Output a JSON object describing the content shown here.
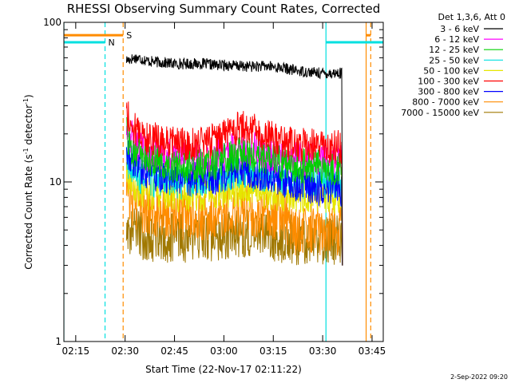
{
  "chart_data": {
    "type": "line",
    "title": "RHESSI Observing Summary Count Rates, Corrected",
    "xlabel": "Start Time (22-Nov-17 02:11:22)",
    "ylabel": "Corrected Count Rate (s",
    "ylabel_sup1": "-1",
    "ylabel_mid": " detector",
    "ylabel_sup2": "-1",
    "ylabel_end": ")",
    "x_unit": "minutes after 02:11:22",
    "xlim": [
      0,
      97
    ],
    "ylim": [
      1,
      100
    ],
    "y_scale": "log",
    "grid": false,
    "x_ticks": [
      {
        "label": "02:15",
        "value": 3.6
      },
      {
        "label": "02:30",
        "value": 18.6
      },
      {
        "label": "02:45",
        "value": 33.6
      },
      {
        "label": "03:00",
        "value": 48.6
      },
      {
        "label": "03:15",
        "value": 63.6
      },
      {
        "label": "03:30",
        "value": 78.6
      },
      {
        "label": "03:45",
        "value": 93.6
      }
    ],
    "y_ticks": [
      {
        "label": "1",
        "value": 1
      },
      {
        "label": "10",
        "value": 10
      },
      {
        "label": "100",
        "value": 100
      }
    ],
    "legend_title": "Det 1,3,6, Att 0",
    "legend_position": "outside-right",
    "series": [
      {
        "name": "3 - 6 keV",
        "color": "#000000",
        "x": [
          19,
          22,
          26,
          30,
          34,
          38,
          42,
          46,
          50,
          54,
          58,
          62,
          66,
          70,
          74,
          78,
          82,
          84.5,
          84.6
        ],
        "y": [
          58,
          60,
          57,
          56,
          55,
          55,
          55,
          54,
          54,
          53,
          53,
          53,
          52,
          50,
          49,
          48,
          48,
          48,
          3
        ]
      },
      {
        "name": "6 - 12 keV",
        "color": "#ff00ff",
        "x": [
          19,
          20,
          22,
          25,
          30,
          35,
          40,
          45,
          50,
          54,
          58,
          62,
          66,
          70,
          74,
          78,
          82,
          84.5,
          84.6
        ],
        "y": [
          24,
          20,
          17,
          15,
          15,
          14,
          14,
          14,
          15.5,
          16.5,
          16,
          15,
          14,
          14,
          14,
          14,
          14,
          14,
          3
        ]
      },
      {
        "name": "12 - 25 keV",
        "color": "#00d000",
        "x": [
          19,
          20,
          22,
          25,
          30,
          35,
          40,
          45,
          50,
          54,
          58,
          62,
          66,
          70,
          74,
          78,
          82,
          84.5,
          84.6
        ],
        "y": [
          20,
          17,
          15,
          14,
          13,
          12.5,
          12.5,
          13,
          14,
          15,
          14.5,
          14,
          13,
          12.5,
          12.5,
          12.5,
          12,
          12,
          3
        ]
      },
      {
        "name": "25 - 50 keV",
        "color": "#00e0e0",
        "x": [
          19,
          20,
          22,
          25,
          30,
          35,
          40,
          45,
          50,
          54,
          58,
          62,
          66,
          70,
          74,
          78,
          82,
          84.5,
          84.6
        ],
        "y": [
          14,
          12,
          11,
          10.5,
          10,
          10,
          10,
          10,
          11,
          11.5,
          11,
          11,
          10.5,
          10,
          10,
          10,
          10,
          10,
          3
        ]
      },
      {
        "name": "50 - 100 keV",
        "color": "#e6e600",
        "x": [
          19,
          20,
          22,
          25,
          30,
          35,
          40,
          45,
          50,
          54,
          58,
          62,
          66,
          70,
          74,
          78,
          82,
          84.5,
          84.6
        ],
        "y": [
          12,
          10,
          9,
          8.5,
          8.5,
          8.3,
          8.3,
          8.4,
          8.8,
          9,
          8.8,
          8.6,
          8.4,
          8.2,
          8.2,
          8.2,
          8.1,
          8.1,
          3
        ]
      },
      {
        "name": "100 - 300 keV",
        "color": "#ff0000",
        "x": [
          19,
          20,
          22,
          25,
          30,
          35,
          40,
          45,
          50,
          54,
          58,
          62,
          66,
          70,
          74,
          78,
          82,
          84.5,
          84.6
        ],
        "y": [
          28,
          24,
          21,
          19,
          18,
          17.5,
          17.5,
          18,
          20,
          22,
          21,
          19,
          18,
          17,
          17,
          17,
          16.5,
          16.5,
          3
        ]
      },
      {
        "name": "300 - 800 keV",
        "color": "#0000ff",
        "x": [
          19,
          20,
          22,
          25,
          30,
          35,
          40,
          45,
          50,
          54,
          58,
          62,
          66,
          70,
          74,
          78,
          82,
          84.5,
          84.6
        ],
        "y": [
          17,
          14,
          12.5,
          11.5,
          11,
          10.5,
          10.5,
          10.5,
          11.5,
          12,
          11.5,
          11,
          10.5,
          9.5,
          9.5,
          9,
          9,
          9,
          3
        ]
      },
      {
        "name": "800 - 7000 keV",
        "color": "#ff8c00",
        "x": [
          19,
          20,
          22,
          25,
          30,
          35,
          40,
          45,
          50,
          54,
          58,
          62,
          66,
          70,
          74,
          78,
          82,
          84.5,
          84.6
        ],
        "y": [
          9.5,
          8,
          7,
          6.5,
          6.3,
          6.2,
          6.2,
          6.2,
          6.5,
          6.6,
          6.5,
          6.4,
          6.2,
          5,
          5,
          5,
          5,
          5,
          3
        ]
      },
      {
        "name": "7000 - 15000 keV",
        "color": "#a07800",
        "x": [
          19,
          20,
          22,
          25,
          30,
          35,
          40,
          45,
          50,
          54,
          58,
          62,
          66,
          70,
          74,
          78,
          82,
          84.5,
          84.6
        ],
        "y": [
          5.5,
          5,
          4.8,
          4.6,
          4.5,
          4.5,
          4.5,
          4.5,
          4.7,
          4.8,
          4.7,
          4.6,
          4.5,
          4.3,
          4.3,
          4.3,
          4.3,
          4.3,
          3
        ]
      }
    ],
    "annotations": [
      {
        "label": "N",
        "kind": "night",
        "color": "#00e0e0",
        "x_start": 0,
        "x_end": 12.5,
        "level": 75
      },
      {
        "label": "",
        "kind": "night",
        "color": "#00e0e0",
        "x_start": 79.6,
        "x_end": 97,
        "level": 75
      },
      {
        "label": "S",
        "kind": "saa",
        "color": "#ff8c00",
        "x_start": 0,
        "x_end": 18,
        "level": 83
      },
      {
        "label": "",
        "kind": "saa",
        "color": "#ff8c00",
        "x_start": 91.8,
        "x_end": 93.2,
        "level": 83
      }
    ],
    "vlines": [
      {
        "x": 0,
        "color": "#00e0e0",
        "style": "solid"
      },
      {
        "x": 12.5,
        "color": "#00e0e0",
        "style": "dashed"
      },
      {
        "x": 18,
        "color": "#ff8c00",
        "style": "dashed"
      },
      {
        "x": 79.6,
        "color": "#00e0e0",
        "style": "solid"
      },
      {
        "x": 91.8,
        "color": "#ff8c00",
        "style": "solid"
      },
      {
        "x": 93.2,
        "color": "#ff8c00",
        "style": "dashed"
      }
    ]
  },
  "footer": {
    "timestamp": "2-Sep-2022 09:20"
  }
}
